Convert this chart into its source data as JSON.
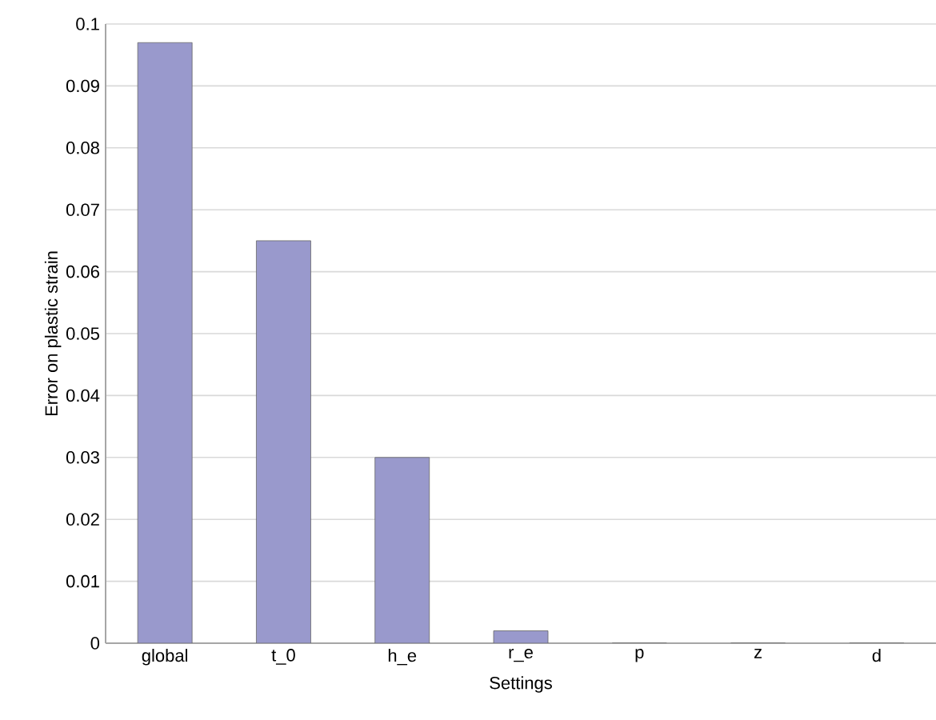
{
  "chart_data": {
    "type": "bar",
    "xlabel": "Settings",
    "ylabel": "Error on plastic strain",
    "categories": [
      "global",
      "t_0",
      "h_e",
      "r_e",
      "p",
      "z",
      "d"
    ],
    "values": [
      0.097,
      0.065,
      0.03,
      0.002,
      0,
      0,
      0
    ],
    "color": "#9999cc",
    "ylim": [
      0,
      0.1
    ],
    "yticks": [
      0,
      0.01,
      0.02,
      0.03,
      0.04,
      0.05,
      0.06,
      0.07,
      0.08,
      0.09,
      0.1
    ],
    "grid": "y"
  }
}
